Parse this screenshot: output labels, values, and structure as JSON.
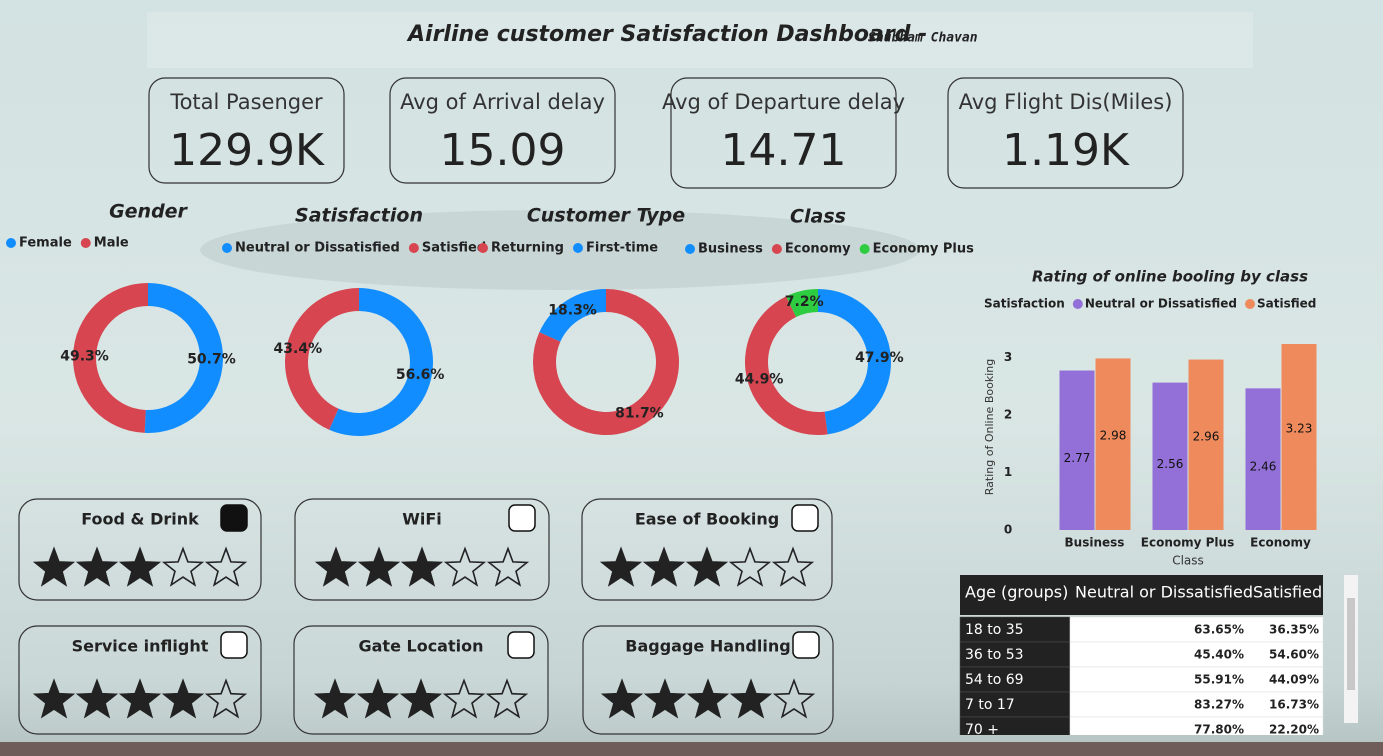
{
  "title": "Airline customer Satisfaction Dashboard -",
  "author": "Shubham Chavan",
  "kpis": [
    {
      "label": "Total Pasenger",
      "value": "129.9K"
    },
    {
      "label": "Avg of Arrival delay",
      "value": "15.09"
    },
    {
      "label": "Avg of Departure delay",
      "value": "14.71"
    },
    {
      "label": "Avg Flight Dis(Miles)",
      "value": "1.19K"
    }
  ],
  "chart_data": [
    {
      "type": "pie",
      "title": "Gender",
      "categories": [
        "Female",
        "Male"
      ],
      "values": [
        50.7,
        49.3
      ],
      "value_labels": [
        "50.7%",
        "49.3%"
      ],
      "colors": [
        "#118dff",
        "#d64550"
      ]
    },
    {
      "type": "pie",
      "title": "Satisfaction",
      "categories": [
        "Neutral or Dissatisfied",
        "Satisfied"
      ],
      "values": [
        56.6,
        43.4
      ],
      "value_labels": [
        "56.6%",
        "43.4%"
      ],
      "colors": [
        "#118dff",
        "#d64550"
      ]
    },
    {
      "type": "pie",
      "title": "Customer Type",
      "categories": [
        "Returning",
        "First-time"
      ],
      "values": [
        81.7,
        18.3
      ],
      "value_labels": [
        "81.7%",
        "18.3%"
      ],
      "colors": [
        "#d64550",
        "#118dff"
      ]
    },
    {
      "type": "pie",
      "title": "Class",
      "categories": [
        "Business",
        "Economy",
        "Economy Plus"
      ],
      "values": [
        47.9,
        44.9,
        7.2
      ],
      "value_labels": [
        "47.9%",
        "44.9%",
        "7.2%"
      ],
      "colors": [
        "#118dff",
        "#d64550",
        "#2ecc40"
      ]
    },
    {
      "type": "bar",
      "title": "Rating of online booling by class",
      "legend_title": "Satisfaction",
      "categories": [
        "Business",
        "Economy Plus",
        "Economy"
      ],
      "series": [
        {
          "name": "Neutral or Dissatisfied",
          "color": "#9370d8",
          "values": [
            2.77,
            2.56,
            2.46
          ]
        },
        {
          "name": "Satisfied",
          "color": "#ef8a5c",
          "values": [
            2.98,
            2.96,
            3.23
          ]
        }
      ],
      "x_label": "Class",
      "y_label": "Rating of Online Booking",
      "ylim": [
        0,
        3.3
      ],
      "yticks": [
        0,
        1,
        2,
        3
      ]
    }
  ],
  "ratings": [
    {
      "label": "Food & Drink",
      "stars": 3,
      "max": 5
    },
    {
      "label": "WiFi",
      "stars": 3,
      "max": 5
    },
    {
      "label": "Ease of Booking",
      "stars": 3,
      "max": 5
    },
    {
      "label": "Service inflight",
      "stars": 4,
      "max": 5
    },
    {
      "label": "Gate Location",
      "stars": 3,
      "max": 5
    },
    {
      "label": "Baggage Handling",
      "stars": 4,
      "max": 5
    }
  ],
  "table": {
    "columns": [
      "Age (groups)",
      "Neutral or Dissatisfied",
      "Satisfied"
    ],
    "rows": [
      [
        "18 to 35",
        "63.65%",
        "36.35%"
      ],
      [
        "36 to 53",
        "45.40%",
        "54.60%"
      ],
      [
        "54 to 69",
        "55.91%",
        "44.09%"
      ],
      [
        "7 to 17",
        "83.27%",
        "16.73%"
      ],
      [
        "70 +",
        "77.80%",
        "22.20%"
      ]
    ]
  }
}
